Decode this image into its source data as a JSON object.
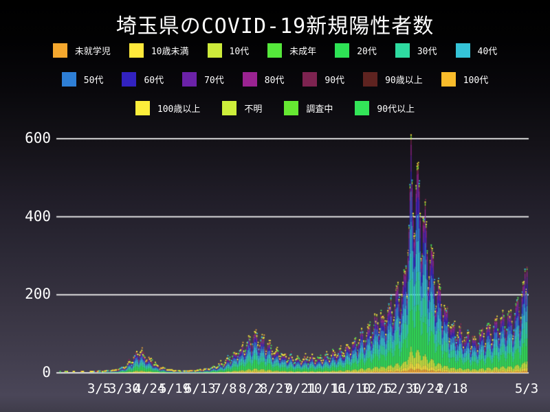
{
  "title": "埼玉県のCOVID-19新規陽性者数",
  "legend": {
    "rows": [
      [
        {
          "label": "未就学児",
          "color": "#f5a82e"
        },
        {
          "label": "10歳未満",
          "color": "#ffe93b"
        },
        {
          "label": "10代",
          "color": "#cdeb3b"
        },
        {
          "label": "未成年",
          "color": "#55e83b"
        },
        {
          "label": "20代",
          "color": "#2ee355"
        },
        {
          "label": "30代",
          "color": "#2edba0"
        },
        {
          "label": "40代",
          "color": "#35c4d8"
        }
      ],
      [
        {
          "label": "50代",
          "color": "#2e7fd6"
        },
        {
          "label": "60代",
          "color": "#3222c0"
        },
        {
          "label": "70代",
          "color": "#6b22a8"
        },
        {
          "label": "80代",
          "color": "#9a2391"
        },
        {
          "label": "90代",
          "color": "#7d2350"
        },
        {
          "label": "90歳以上",
          "color": "#5e2320"
        },
        {
          "label": "100代",
          "color": "#f9bc2b"
        }
      ],
      [
        {
          "label": "100歳以上",
          "color": "#fcee3b"
        },
        {
          "label": "不明",
          "color": "#cdee3b"
        },
        {
          "label": "調査中",
          "color": "#66e832"
        },
        {
          "label": "90代以上",
          "color": "#33e558"
        }
      ]
    ]
  },
  "chart_data": {
    "type": "bar",
    "stacked": true,
    "title": "埼玉県のCOVID-19新規陽性者数",
    "xlabel": "",
    "ylabel": "",
    "y_axis_max": 600,
    "ylim": [
      0,
      640
    ],
    "y_ticks": [
      0,
      200,
      400,
      600
    ],
    "grid_color": "#f2f2f2",
    "x_tick_labels": [
      {
        "text": "3/5",
        "day": 41
      },
      {
        "text": "3/30",
        "day": 66
      },
      {
        "text": "4/24",
        "day": 91
      },
      {
        "text": "5/19",
        "day": 116
      },
      {
        "text": "6/13",
        "day": 141
      },
      {
        "text": "7/8",
        "day": 166
      },
      {
        "text": "8/2",
        "day": 191
      },
      {
        "text": "8/27",
        "day": 216
      },
      {
        "text": "9/21",
        "day": 241
      },
      {
        "text": "10/16",
        "day": 266
      },
      {
        "text": "11/10",
        "day": 291
      },
      {
        "text": "12/5",
        "day": 316
      },
      {
        "text": "12/30",
        "day": 341
      },
      {
        "text": "1/24",
        "day": 366
      },
      {
        "text": "2/18",
        "day": 391
      },
      {
        "text": "5/3",
        "day": 465
      }
    ],
    "total_days": 465,
    "series": [
      {
        "name": "未就学児",
        "color": "#f5a82e",
        "share": 0.02
      },
      {
        "name": "10歳未満",
        "color": "#ffe93b",
        "share": 0.028
      },
      {
        "name": "10代",
        "color": "#cdeb3b",
        "share": 0.062
      },
      {
        "name": "未成年",
        "color": "#55e83b",
        "share": 0.004
      },
      {
        "name": "20代",
        "color": "#2ee355",
        "share": 0.215
      },
      {
        "name": "30代",
        "color": "#2edba0",
        "share": 0.16
      },
      {
        "name": "40代",
        "color": "#35c4d8",
        "share": 0.15
      },
      {
        "name": "50代",
        "color": "#2e7fd6",
        "share": 0.128
      },
      {
        "name": "60代",
        "color": "#3222c0",
        "share": 0.082
      },
      {
        "name": "70代",
        "color": "#6b22a8",
        "share": 0.068
      },
      {
        "name": "80代",
        "color": "#9a2391",
        "share": 0.047
      },
      {
        "name": "90代",
        "color": "#7d2350",
        "share": 0.018
      },
      {
        "name": "90歳以上",
        "color": "#5e2320",
        "share": 0.002
      },
      {
        "name": "100代",
        "color": "#f9bc2b",
        "share": 0.001
      },
      {
        "name": "100歳以上",
        "color": "#fcee3b",
        "share": 0.001
      },
      {
        "name": "不明",
        "color": "#cdee3b",
        "share": 0.008
      },
      {
        "name": "調査中",
        "color": "#66e832",
        "share": 0.005
      },
      {
        "name": "90代以上",
        "color": "#33e558",
        "share": 0.001
      }
    ],
    "envelope_points": [
      [
        0,
        0
      ],
      [
        2,
        1
      ],
      [
        5,
        0
      ],
      [
        9,
        1
      ],
      [
        12,
        0
      ],
      [
        16,
        1
      ],
      [
        20,
        0
      ],
      [
        24,
        1
      ],
      [
        28,
        0
      ],
      [
        32,
        1
      ],
      [
        36,
        1
      ],
      [
        40,
        2
      ],
      [
        44,
        2
      ],
      [
        48,
        3
      ],
      [
        52,
        4
      ],
      [
        56,
        5
      ],
      [
        60,
        8
      ],
      [
        64,
        12
      ],
      [
        68,
        18
      ],
      [
        72,
        30
      ],
      [
        76,
        46
      ],
      [
        80,
        58
      ],
      [
        84,
        52
      ],
      [
        88,
        42
      ],
      [
        93,
        30
      ],
      [
        98,
        18
      ],
      [
        103,
        12
      ],
      [
        108,
        8
      ],
      [
        113,
        5
      ],
      [
        118,
        3
      ],
      [
        124,
        2
      ],
      [
        130,
        3
      ],
      [
        136,
        4
      ],
      [
        142,
        6
      ],
      [
        148,
        9
      ],
      [
        154,
        14
      ],
      [
        160,
        20
      ],
      [
        166,
        30
      ],
      [
        172,
        45
      ],
      [
        178,
        60
      ],
      [
        184,
        74
      ],
      [
        190,
        90
      ],
      [
        196,
        104
      ],
      [
        200,
        96
      ],
      [
        205,
        84
      ],
      [
        210,
        72
      ],
      [
        216,
        60
      ],
      [
        222,
        52
      ],
      [
        228,
        46
      ],
      [
        234,
        40
      ],
      [
        240,
        36
      ],
      [
        246,
        38
      ],
      [
        252,
        42
      ],
      [
        258,
        40
      ],
      [
        264,
        44
      ],
      [
        270,
        48
      ],
      [
        276,
        54
      ],
      [
        282,
        62
      ],
      [
        288,
        74
      ],
      [
        294,
        88
      ],
      [
        300,
        104
      ],
      [
        306,
        120
      ],
      [
        312,
        138
      ],
      [
        318,
        155
      ],
      [
        324,
        172
      ],
      [
        330,
        190
      ],
      [
        335,
        215
      ],
      [
        340,
        250
      ],
      [
        343,
        285
      ],
      [
        346,
        350
      ],
      [
        348,
        460
      ],
      [
        350,
        600
      ],
      [
        351,
        560
      ],
      [
        353,
        565
      ],
      [
        355,
        548
      ],
      [
        357,
        545
      ],
      [
        358,
        528
      ],
      [
        360,
        482
      ],
      [
        362,
        445
      ],
      [
        364,
        408
      ],
      [
        366,
        372
      ],
      [
        369,
        330
      ],
      [
        372,
        292
      ],
      [
        375,
        262
      ],
      [
        378,
        236
      ],
      [
        381,
        214
      ],
      [
        384,
        190
      ],
      [
        387,
        166
      ],
      [
        390,
        142
      ],
      [
        394,
        128
      ],
      [
        398,
        116
      ],
      [
        402,
        108
      ],
      [
        406,
        102
      ],
      [
        410,
        98
      ],
      [
        414,
        100
      ],
      [
        418,
        106
      ],
      [
        422,
        114
      ],
      [
        426,
        122
      ],
      [
        430,
        132
      ],
      [
        434,
        140
      ],
      [
        438,
        148
      ],
      [
        442,
        154
      ],
      [
        446,
        160
      ],
      [
        450,
        168
      ],
      [
        454,
        180
      ],
      [
        457,
        196
      ],
      [
        459,
        215
      ],
      [
        461,
        242
      ],
      [
        463,
        268
      ],
      [
        465,
        262
      ]
    ],
    "weekly_pattern": [
      1.0,
      0.96,
      0.78,
      0.58,
      0.72,
      0.88,
      0.97
    ],
    "overrides": {
      "350": 607,
      "465": 268
    },
    "cap_dot_colors": [
      "#ffe93b",
      "#ffe93b",
      "#ffe93b",
      "#4ce054",
      "#3bc4da",
      "#f5a93a",
      "#8a2850"
    ],
    "estimation_note": "Daily stacked totals estimated from pixel heights; daily value = interp(envelope_points) x weekly_pattern[day%7] x deterministic jitter, split by series share."
  }
}
